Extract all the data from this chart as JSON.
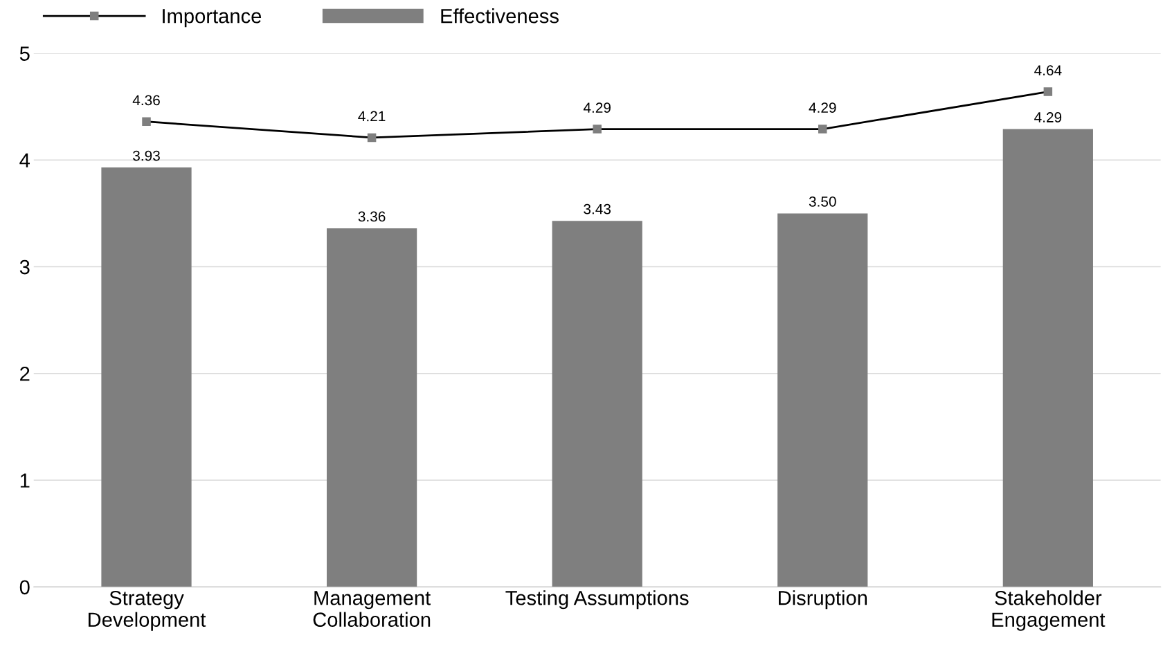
{
  "chart_data": {
    "type": "bar",
    "categories": [
      "Strategy\nDevelopment",
      "Management\nCollaboration",
      "Testing Assumptions",
      "Disruption",
      "Stakeholder\nEngagement"
    ],
    "series": [
      {
        "name": "Importance",
        "type": "line",
        "color": "#000000",
        "marker": "square",
        "values": [
          4.36,
          4.21,
          4.29,
          4.29,
          4.64
        ],
        "value_labels": [
          "4.36",
          "4.21",
          "4.29",
          "4.29",
          "4.64"
        ]
      },
      {
        "name": "Effectiveness",
        "color": "#7f7f7f",
        "values": [
          3.93,
          3.36,
          3.43,
          3.5,
          4.29
        ],
        "value_labels": [
          "3.93",
          "3.36",
          "3.43",
          "3.50",
          "4.29"
        ]
      }
    ],
    "ylim": [
      0,
      5
    ],
    "yticks": [
      0,
      1,
      2,
      3,
      4,
      5
    ],
    "grid": "y",
    "legend": "top left"
  }
}
